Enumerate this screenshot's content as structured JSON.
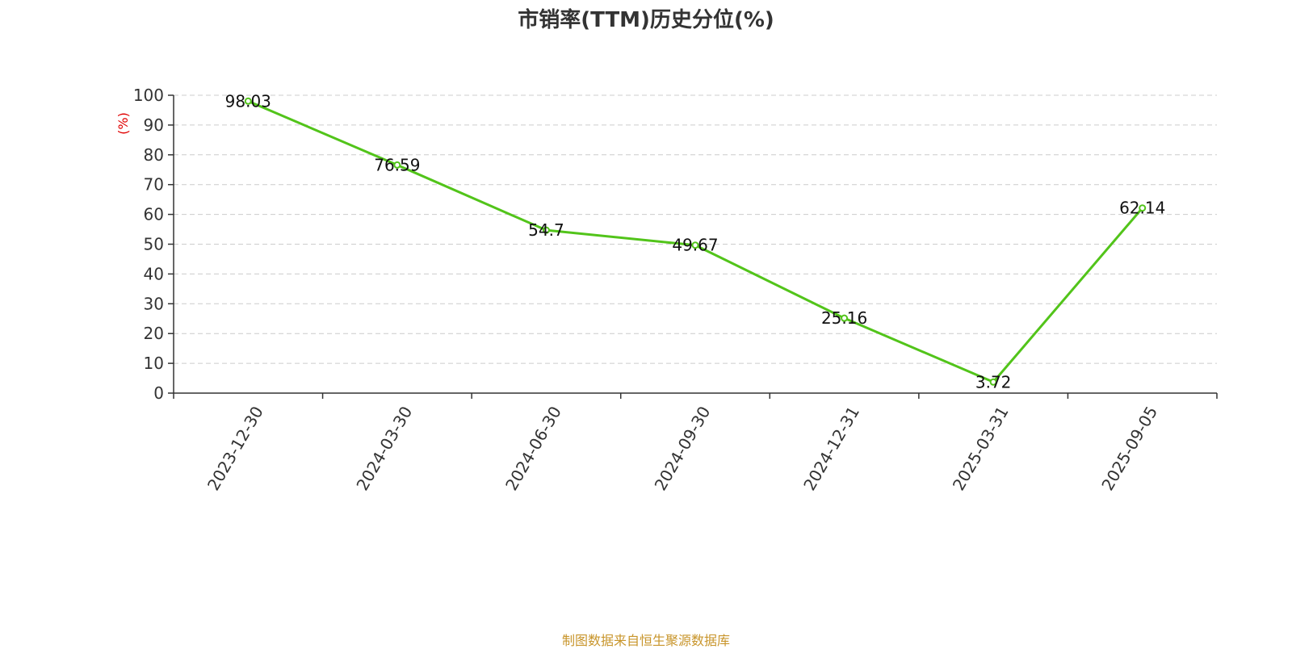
{
  "chart_data": {
    "type": "line",
    "title": "市销率(TTM)历史分位(%)",
    "ylabel": "(%)",
    "xlabel": "",
    "ylim": [
      0,
      100
    ],
    "yticks": [
      0,
      10,
      20,
      30,
      40,
      50,
      60,
      70,
      80,
      90,
      100
    ],
    "categories": [
      "2023-12-30",
      "2024-03-30",
      "2024-06-30",
      "2024-09-30",
      "2024-12-31",
      "2025-03-31",
      "2025-09-05"
    ],
    "series": [
      {
        "values": [
          98.03,
          76.59,
          54.7,
          49.67,
          25.16,
          3.72,
          62.14
        ]
      }
    ],
    "data_labels": [
      "98.03",
      "76.59",
      "54.7",
      "49.67",
      "25.16",
      "3.72",
      "62.14"
    ],
    "grid": true,
    "line_color": "#52c41a",
    "ylabel_color": "#e00000"
  },
  "footer": {
    "source": "制图数据来自恒生聚源数据库"
  }
}
